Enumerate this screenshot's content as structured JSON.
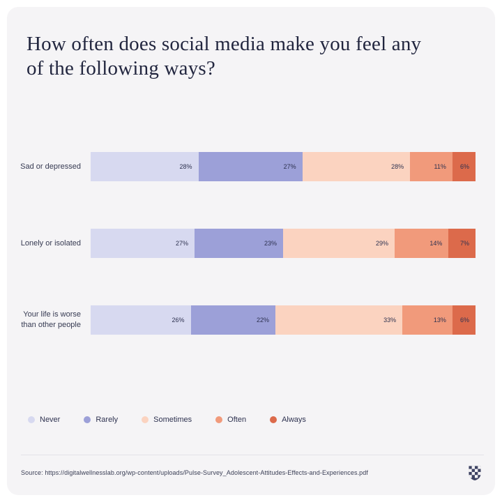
{
  "title": "How often does social media make you feel any of the following ways?",
  "chart_data": {
    "type": "bar",
    "variant": "stacked-horizontal",
    "title": "How often does social media make you feel any of the following ways?",
    "categories": [
      "Sad or depressed",
      "Lonely or isolated",
      "Your life is worse than other people"
    ],
    "series": [
      {
        "name": "Never",
        "color": "#d7d9f0",
        "values": [
          28,
          27,
          26
        ]
      },
      {
        "name": "Rarely",
        "color": "#9ca0d8",
        "values": [
          27,
          23,
          22
        ]
      },
      {
        "name": "Sometimes",
        "color": "#fbd3c0",
        "values": [
          28,
          29,
          33
        ]
      },
      {
        "name": "Often",
        "color": "#f19a7b",
        "values": [
          11,
          14,
          13
        ]
      },
      {
        "name": "Always",
        "color": "#dc6a4b",
        "values": [
          6,
          7,
          6
        ]
      }
    ],
    "value_suffix": "%",
    "xlim": [
      0,
      100
    ],
    "grid": false,
    "legend_position": "bottom",
    "value_labels": "inside-right"
  },
  "colors": {
    "card_background": "#f5f4f6",
    "page_background": "#ffffff",
    "title_text": "#22263f",
    "label_text": "#363a52",
    "value_text": "#2e3250",
    "divider": "#e4e3e8",
    "logo": "#3e4363"
  },
  "footer": {
    "source": "Source: https://digitalwellnesslab.org/wp-content/uploads/Pulse-Survey_Adolescent-Attitudes-Effects-and-Experiences.pdf",
    "logo_name": "checkered-shield-logo"
  }
}
